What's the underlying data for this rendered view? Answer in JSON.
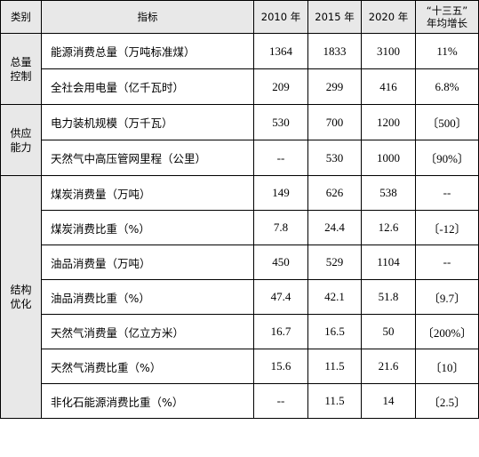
{
  "header": {
    "category": "类别",
    "indicator": "指标",
    "y2010": "2010 年",
    "y2015": "2015 年",
    "y2020": "2020 年",
    "growth_line1": "“十三五”",
    "growth_line2": "年均增长"
  },
  "groups": [
    {
      "line1": "总量",
      "line2": "控制",
      "rows": [
        {
          "indicator": "能源消费总量（万吨标准煤）",
          "v2010": "1364",
          "v2015": "1833",
          "v2020": "3100",
          "growth": "11%"
        },
        {
          "indicator": "全社会用电量（亿千瓦时）",
          "v2010": "209",
          "v2015": "299",
          "v2020": "416",
          "growth": "6.8%"
        }
      ]
    },
    {
      "line1": "供应",
      "line2": "能力",
      "rows": [
        {
          "indicator": "电力装机规模（万千瓦）",
          "v2010": "530",
          "v2015": "700",
          "v2020": "1200",
          "growth": "〔500〕"
        },
        {
          "indicator": "天然气中高压管网里程（公里）",
          "v2010": "--",
          "v2015": "530",
          "v2020": "1000",
          "growth": "〔90%〕"
        }
      ]
    },
    {
      "line1": "结构",
      "line2": "优化",
      "rows": [
        {
          "indicator": "煤炭消费量（万吨）",
          "v2010": "149",
          "v2015": "626",
          "v2020": "538",
          "growth": "--"
        },
        {
          "indicator": "煤炭消费比重（%）",
          "v2010": "7.8",
          "v2015": "24.4",
          "v2020": "12.6",
          "growth": "〔-12〕"
        },
        {
          "indicator": "油品消费量（万吨）",
          "v2010": "450",
          "v2015": "529",
          "v2020": "1104",
          "growth": "--"
        },
        {
          "indicator": "油品消费比重（%）",
          "v2010": "47.4",
          "v2015": "42.1",
          "v2020": "51.8",
          "growth": "〔9.7〕"
        },
        {
          "indicator": "天然气消费量（亿立方米）",
          "v2010": "16.7",
          "v2015": "16.5",
          "v2020": "50",
          "growth": "〔200%〕"
        },
        {
          "indicator": "天然气消费比重（%）",
          "v2010": "15.6",
          "v2015": "11.5",
          "v2020": "21.6",
          "growth": "〔10〕"
        },
        {
          "indicator": "非化石能源消费比重（%）",
          "v2010": "--",
          "v2015": "11.5",
          "v2020": "14",
          "growth": "〔2.5〕"
        }
      ]
    }
  ]
}
